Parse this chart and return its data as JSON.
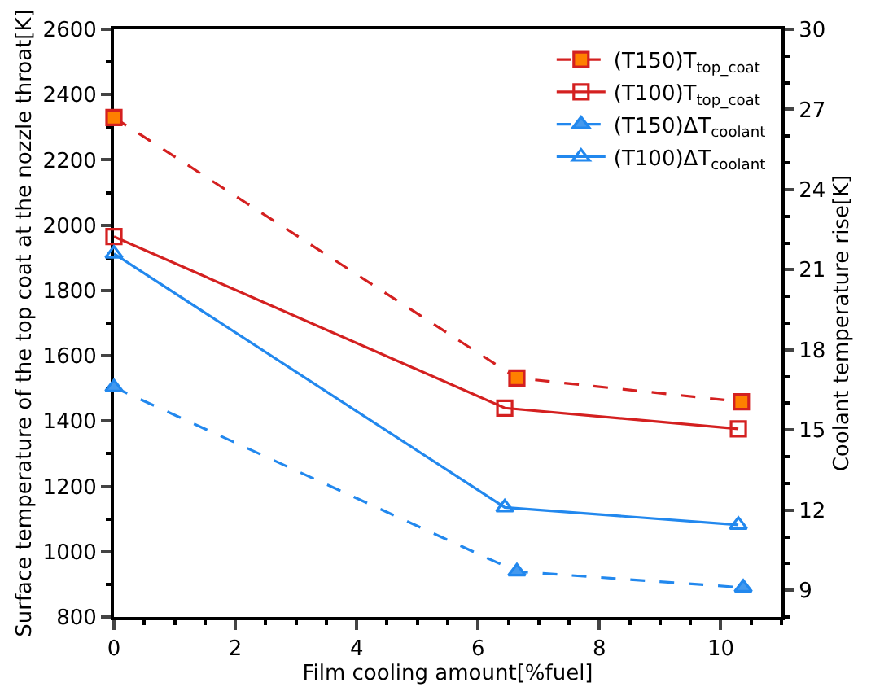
{
  "chart_data": {
    "type": "line",
    "xlabel": "Film cooling amount[%fuel]",
    "ylabel": "Surface temperature of the top coat at the nozzle throat[K]",
    "y2label": "Coolant temperature rise[K]",
    "xlim": [
      0,
      11
    ],
    "xticks": [
      0,
      2,
      4,
      6,
      8,
      10
    ],
    "ylim": [
      800,
      2600
    ],
    "yticks": [
      800,
      1000,
      1200,
      1400,
      1600,
      1800,
      2000,
      2200,
      2400,
      2600
    ],
    "y2lim": [
      8,
      30
    ],
    "y2ticks": [
      9,
      12,
      15,
      18,
      21,
      24,
      27,
      30
    ],
    "legend": "top right",
    "series": [
      {
        "name": "(T150)T$_{top_coat}$",
        "color": "#d42020",
        "colors": [
          "#ff8000",
          "#ff8000",
          "#ff8000"
        ],
        "marker": "square",
        "line_style": "dashed",
        "x": [
          0,
          6.64,
          10.34
        ],
        "values": [
          2330,
          1532,
          1459
        ]
      },
      {
        "name": "(T100)T$_{top_coat}$",
        "color": "#d42020",
        "marker": "square",
        "line_style": "solid",
        "x": [
          0,
          6.44,
          10.29
        ],
        "values": [
          1965,
          1440,
          1376
        ]
      },
      {
        "name": "(T150)ΔT$_{coolant}$",
        "color": "#2288ee",
        "colors": [
          "#4499ee",
          "#4499ee",
          "#4499ee"
        ],
        "marker": "triangle",
        "line_style": "dashed",
        "axis": "y2",
        "x": [
          0,
          6.64,
          10.37
        ],
        "values": [
          16.6,
          9.7,
          9.1
        ]
      },
      {
        "name": "(T100)ΔT$_{coolant}$",
        "color": "#2288ee",
        "marker": "triangle",
        "line_style": "solid",
        "axis": "y2",
        "x": [
          0,
          6.44,
          10.29
        ],
        "values": [
          21.6,
          12.1,
          11.45
        ]
      }
    ]
  }
}
